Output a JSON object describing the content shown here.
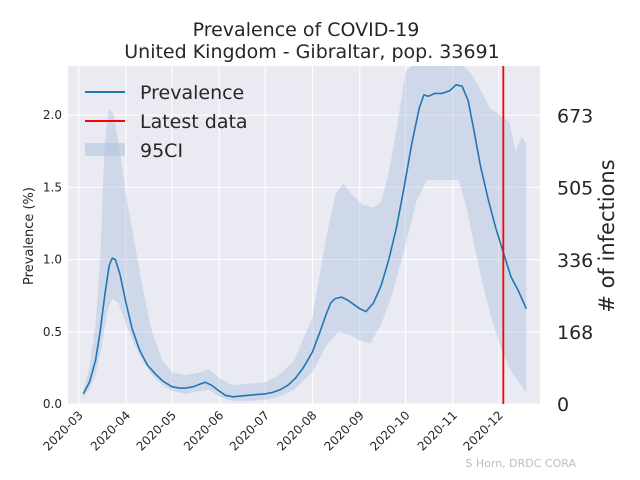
{
  "chart_data": {
    "type": "line",
    "title_line1": "Prevalence of COVID-19",
    "title_line2": "United Kingdom - Gibraltar, pop. 33691",
    "ylabel": "Prevalence (%)",
    "ylabel_right": "# of infections",
    "credit": "S Horn, DRDC CORA",
    "ylim": [
      0,
      2.34
    ],
    "yticks": [
      0.0,
      0.5,
      1.0,
      1.5,
      2.0
    ],
    "ytick_labels": [
      "0.0",
      "0.5",
      "1.0",
      "1.5",
      "2.0"
    ],
    "right_ticks": [
      {
        "value": 0,
        "label": "0"
      },
      {
        "value": 0.4986,
        "label": "168"
      },
      {
        "value": 0.9973,
        "label": "336"
      },
      {
        "value": 1.4989,
        "label": "505"
      },
      {
        "value": 1.9976,
        "label": "673"
      }
    ],
    "xlim": [
      "2020-02-23",
      "2020-12-28"
    ],
    "xticks": [
      "2020-03-01",
      "2020-04-01",
      "2020-05-01",
      "2020-06-01",
      "2020-07-01",
      "2020-08-01",
      "2020-09-01",
      "2020-10-01",
      "2020-11-01",
      "2020-12-01"
    ],
    "xtick_labels": [
      "2020-03",
      "2020-04",
      "2020-05",
      "2020-06",
      "2020-07",
      "2020-08",
      "2020-09",
      "2020-10",
      "2020-11",
      "2020-12"
    ],
    "latest_data_date": "2020-12-04",
    "grid": true,
    "legend_position": "top-left",
    "legend": [
      "Prevalence",
      "Latest data",
      "95CI"
    ],
    "colors": {
      "line": "#1f77b4",
      "latest": "#ff0000",
      "band": "#b0c4de",
      "plot_bg": "#eaeaf2",
      "grid": "#ffffff"
    },
    "series": [
      {
        "name": "Prevalence",
        "points": [
          [
            "2020-03-04",
            0.07
          ],
          [
            "2020-03-08",
            0.15
          ],
          [
            "2020-03-12",
            0.3
          ],
          [
            "2020-03-15",
            0.5
          ],
          [
            "2020-03-18",
            0.75
          ],
          [
            "2020-03-21",
            0.96
          ],
          [
            "2020-03-23",
            1.01
          ],
          [
            "2020-03-25",
            1.0
          ],
          [
            "2020-03-28",
            0.9
          ],
          [
            "2020-04-01",
            0.7
          ],
          [
            "2020-04-05",
            0.52
          ],
          [
            "2020-04-10",
            0.37
          ],
          [
            "2020-04-15",
            0.27
          ],
          [
            "2020-04-20",
            0.21
          ],
          [
            "2020-04-25",
            0.16
          ],
          [
            "2020-05-01",
            0.12
          ],
          [
            "2020-05-06",
            0.11
          ],
          [
            "2020-05-10",
            0.11
          ],
          [
            "2020-05-15",
            0.12
          ],
          [
            "2020-05-20",
            0.14
          ],
          [
            "2020-05-23",
            0.15
          ],
          [
            "2020-05-27",
            0.13
          ],
          [
            "2020-06-01",
            0.09
          ],
          [
            "2020-06-05",
            0.06
          ],
          [
            "2020-06-10",
            0.05
          ],
          [
            "2020-06-15",
            0.055
          ],
          [
            "2020-06-20",
            0.06
          ],
          [
            "2020-06-25",
            0.065
          ],
          [
            "2020-07-01",
            0.07
          ],
          [
            "2020-07-06",
            0.08
          ],
          [
            "2020-07-11",
            0.1
          ],
          [
            "2020-07-16",
            0.13
          ],
          [
            "2020-07-21",
            0.18
          ],
          [
            "2020-07-26",
            0.25
          ],
          [
            "2020-08-01",
            0.36
          ],
          [
            "2020-08-06",
            0.5
          ],
          [
            "2020-08-10",
            0.62
          ],
          [
            "2020-08-13",
            0.7
          ],
          [
            "2020-08-16",
            0.73
          ],
          [
            "2020-08-20",
            0.74
          ],
          [
            "2020-08-24",
            0.72
          ],
          [
            "2020-08-28",
            0.69
          ],
          [
            "2020-09-01",
            0.66
          ],
          [
            "2020-09-05",
            0.64
          ],
          [
            "2020-09-10",
            0.7
          ],
          [
            "2020-09-15",
            0.82
          ],
          [
            "2020-09-20",
            1.0
          ],
          [
            "2020-09-25",
            1.22
          ],
          [
            "2020-09-30",
            1.5
          ],
          [
            "2020-10-05",
            1.8
          ],
          [
            "2020-10-10",
            2.05
          ],
          [
            "2020-10-13",
            2.14
          ],
          [
            "2020-10-16",
            2.13
          ],
          [
            "2020-10-20",
            2.15
          ],
          [
            "2020-10-25",
            2.15
          ],
          [
            "2020-10-30",
            2.17
          ],
          [
            "2020-11-03",
            2.21
          ],
          [
            "2020-11-07",
            2.2
          ],
          [
            "2020-11-11",
            2.1
          ],
          [
            "2020-11-15",
            1.88
          ],
          [
            "2020-11-19",
            1.65
          ],
          [
            "2020-11-24",
            1.42
          ],
          [
            "2020-11-29",
            1.22
          ],
          [
            "2020-12-04",
            1.05
          ],
          [
            "2020-12-09",
            0.88
          ],
          [
            "2020-12-14",
            0.78
          ],
          [
            "2020-12-19",
            0.66
          ]
        ]
      }
    ],
    "ci95": {
      "lower": [
        [
          "2020-03-04",
          0.05
        ],
        [
          "2020-03-08",
          0.1
        ],
        [
          "2020-03-12",
          0.2
        ],
        [
          "2020-03-16",
          0.4
        ],
        [
          "2020-03-20",
          0.65
        ],
        [
          "2020-03-23",
          0.73
        ],
        [
          "2020-03-27",
          0.7
        ],
        [
          "2020-04-01",
          0.55
        ],
        [
          "2020-04-06",
          0.42
        ],
        [
          "2020-04-12",
          0.3
        ],
        [
          "2020-04-18",
          0.2
        ],
        [
          "2020-04-25",
          0.13
        ],
        [
          "2020-05-01",
          0.09
        ],
        [
          "2020-05-10",
          0.07
        ],
        [
          "2020-05-20",
          0.09
        ],
        [
          "2020-05-25",
          0.1
        ],
        [
          "2020-06-01",
          0.05
        ],
        [
          "2020-06-10",
          0.02
        ],
        [
          "2020-06-20",
          0.02
        ],
        [
          "2020-07-01",
          0.03
        ],
        [
          "2020-07-10",
          0.05
        ],
        [
          "2020-07-20",
          0.1
        ],
        [
          "2020-08-01",
          0.22
        ],
        [
          "2020-08-10",
          0.4
        ],
        [
          "2020-08-18",
          0.5
        ],
        [
          "2020-08-25",
          0.48
        ],
        [
          "2020-09-01",
          0.44
        ],
        [
          "2020-09-08",
          0.42
        ],
        [
          "2020-09-15",
          0.55
        ],
        [
          "2020-09-22",
          0.75
        ],
        [
          "2020-10-01",
          1.1
        ],
        [
          "2020-10-08",
          1.4
        ],
        [
          "2020-10-15",
          1.55
        ],
        [
          "2020-10-22",
          1.55
        ],
        [
          "2020-10-29",
          1.55
        ],
        [
          "2020-11-05",
          1.55
        ],
        [
          "2020-11-10",
          1.35
        ],
        [
          "2020-11-15",
          1.1
        ],
        [
          "2020-11-20",
          0.85
        ],
        [
          "2020-11-26",
          0.6
        ],
        [
          "2020-12-02",
          0.4
        ],
        [
          "2020-12-08",
          0.25
        ],
        [
          "2020-12-14",
          0.15
        ],
        [
          "2020-12-19",
          0.08
        ]
      ],
      "upper": [
        [
          "2020-03-04",
          0.1
        ],
        [
          "2020-03-08",
          0.25
        ],
        [
          "2020-03-12",
          0.55
        ],
        [
          "2020-03-15",
          1.0
        ],
        [
          "2020-03-18",
          1.8
        ],
        [
          "2020-03-21",
          2.05
        ],
        [
          "2020-03-24",
          2.0
        ],
        [
          "2020-03-28",
          1.75
        ],
        [
          "2020-04-01",
          1.45
        ],
        [
          "2020-04-06",
          1.15
        ],
        [
          "2020-04-12",
          0.8
        ],
        [
          "2020-04-18",
          0.5
        ],
        [
          "2020-04-25",
          0.3
        ],
        [
          "2020-05-01",
          0.22
        ],
        [
          "2020-05-10",
          0.2
        ],
        [
          "2020-05-20",
          0.22
        ],
        [
          "2020-05-25",
          0.24
        ],
        [
          "2020-06-01",
          0.18
        ],
        [
          "2020-06-10",
          0.13
        ],
        [
          "2020-06-20",
          0.14
        ],
        [
          "2020-07-01",
          0.15
        ],
        [
          "2020-07-10",
          0.2
        ],
        [
          "2020-07-20",
          0.3
        ],
        [
          "2020-08-01",
          0.6
        ],
        [
          "2020-08-10",
          1.15
        ],
        [
          "2020-08-16",
          1.45
        ],
        [
          "2020-08-21",
          1.53
        ],
        [
          "2020-08-27",
          1.45
        ],
        [
          "2020-09-03",
          1.38
        ],
        [
          "2020-09-10",
          1.36
        ],
        [
          "2020-09-15",
          1.4
        ],
        [
          "2020-09-20",
          1.6
        ],
        [
          "2020-09-25",
          1.9
        ],
        [
          "2020-10-01",
          2.3
        ],
        [
          "2020-10-05",
          2.34
        ],
        [
          "2020-11-08",
          2.34
        ],
        [
          "2020-11-12",
          2.3
        ],
        [
          "2020-11-18",
          2.2
        ],
        [
          "2020-11-25",
          2.05
        ],
        [
          "2020-12-02",
          2.0
        ],
        [
          "2020-12-08",
          1.95
        ],
        [
          "2020-12-12",
          1.75
        ],
        [
          "2020-12-16",
          1.85
        ],
        [
          "2020-12-19",
          1.8
        ]
      ]
    }
  }
}
